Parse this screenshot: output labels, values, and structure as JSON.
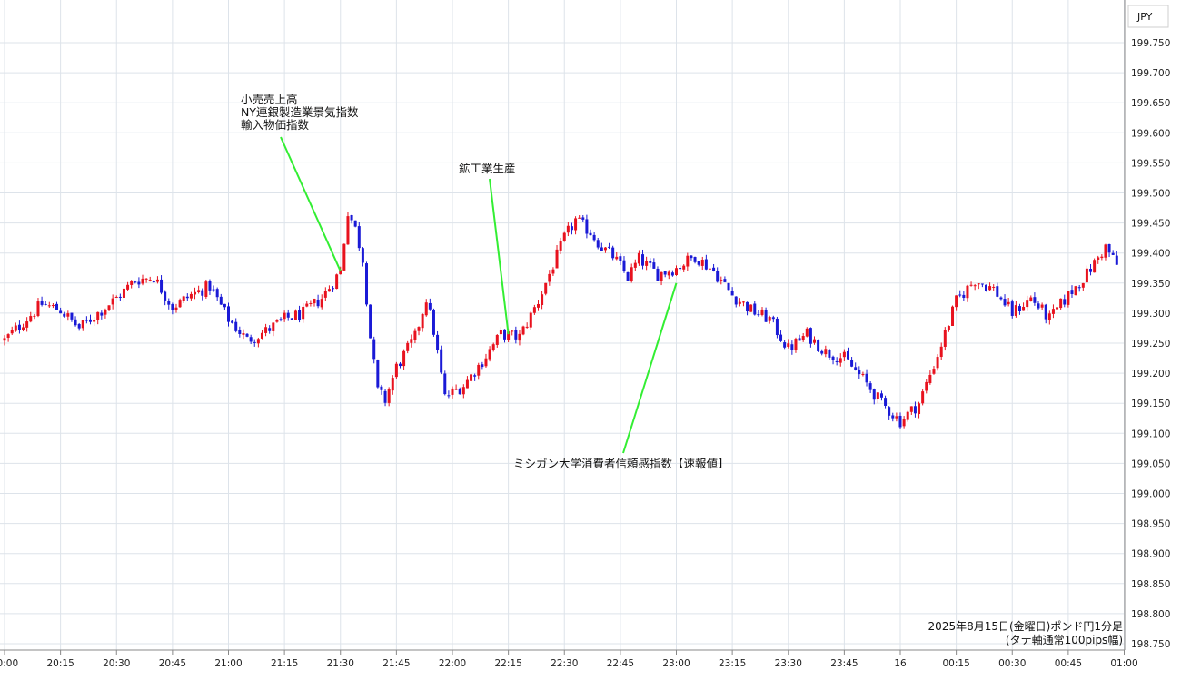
{
  "currency_label": "JPY",
  "caption": [
    "2025年8月15日(金曜日)ポンド円1分足",
    "(タテ軸通常100pips幅)"
  ],
  "colors": {
    "up": "#e8121e",
    "down": "#1a1ad6",
    "grid": "#dde3ea",
    "axis_line": "#888888",
    "annotation_line": "#33ee33"
  },
  "chart_data": {
    "type": "candlestick",
    "title": "2025年8月15日(金曜日)ポンド円1分足",
    "subtitle": "(タテ軸通常100pips幅)",
    "yaxis": {
      "label": "JPY",
      "range": [
        198.74,
        199.79
      ],
      "ticks": [
        "199.750",
        "199.700",
        "199.650",
        "199.600",
        "199.550",
        "199.500",
        "199.450",
        "199.400",
        "199.350",
        "199.300",
        "199.250",
        "199.200",
        "199.150",
        "199.100",
        "199.050",
        "199.000",
        "198.950",
        "198.900",
        "198.850",
        "198.800",
        "198.750"
      ],
      "grid": true
    },
    "xaxis": {
      "range": [
        "20:00",
        "01:00"
      ],
      "ticks": [
        {
          "t": "20:00",
          "label": "20:00"
        },
        {
          "t": "20:15",
          "label": "20:15"
        },
        {
          "t": "20:30",
          "label": "20:30"
        },
        {
          "t": "20:45",
          "label": "20:45"
        },
        {
          "t": "21:00",
          "label": "21:00"
        },
        {
          "t": "21:15",
          "label": "21:15"
        },
        {
          "t": "21:30",
          "label": "21:30"
        },
        {
          "t": "21:45",
          "label": "21:45"
        },
        {
          "t": "22:00",
          "label": "22:00"
        },
        {
          "t": "22:15",
          "label": "22:15"
        },
        {
          "t": "22:30",
          "label": "22:30"
        },
        {
          "t": "22:45",
          "label": "22:45"
        },
        {
          "t": "23:00",
          "label": "23:00"
        },
        {
          "t": "23:15",
          "label": "23:15"
        },
        {
          "t": "23:30",
          "label": "23:30"
        },
        {
          "t": "23:45",
          "label": "23:45"
        },
        {
          "t": "24:00",
          "label": "16"
        },
        {
          "t": "24:15",
          "label": "00:15"
        },
        {
          "t": "24:30",
          "label": "00:30"
        },
        {
          "t": "24:45",
          "label": "00:45"
        },
        {
          "t": "25:00",
          "label": "01:00"
        }
      ],
      "grid": true
    },
    "series_close_anchors": [
      [
        "20:00",
        199.255
      ],
      [
        "20:05",
        199.285
      ],
      [
        "20:10",
        199.315
      ],
      [
        "20:15",
        199.305
      ],
      [
        "20:20",
        199.275
      ],
      [
        "20:25",
        199.3
      ],
      [
        "20:30",
        199.325
      ],
      [
        "20:35",
        199.355
      ],
      [
        "20:40",
        199.36
      ],
      [
        "20:45",
        199.31
      ],
      [
        "20:50",
        199.33
      ],
      [
        "20:55",
        199.345
      ],
      [
        "21:00",
        199.29
      ],
      [
        "21:05",
        199.255
      ],
      [
        "21:10",
        199.27
      ],
      [
        "21:15",
        199.29
      ],
      [
        "21:20",
        199.3
      ],
      [
        "21:25",
        199.325
      ],
      [
        "21:30",
        199.37
      ],
      [
        "21:32",
        199.47
      ],
      [
        "21:34",
        199.44
      ],
      [
        "21:36",
        199.39
      ],
      [
        "21:38",
        199.26
      ],
      [
        "21:40",
        199.17
      ],
      [
        "21:42",
        199.155
      ],
      [
        "21:45",
        199.21
      ],
      [
        "21:50",
        199.26
      ],
      [
        "21:53",
        199.325
      ],
      [
        "21:55",
        199.27
      ],
      [
        "21:58",
        199.16
      ],
      [
        "22:03",
        199.18
      ],
      [
        "22:08",
        199.22
      ],
      [
        "22:13",
        199.265
      ],
      [
        "22:18",
        199.26
      ],
      [
        "22:23",
        199.32
      ],
      [
        "22:27",
        199.38
      ],
      [
        "22:30",
        199.425
      ],
      [
        "22:33",
        199.455
      ],
      [
        "22:37",
        199.435
      ],
      [
        "22:40",
        199.41
      ],
      [
        "22:43",
        199.395
      ],
      [
        "22:47",
        199.36
      ],
      [
        "22:50",
        199.39
      ],
      [
        "22:55",
        199.365
      ],
      [
        "23:00",
        199.375
      ],
      [
        "23:05",
        199.395
      ],
      [
        "23:10",
        199.37
      ],
      [
        "23:15",
        199.33
      ],
      [
        "23:20",
        199.305
      ],
      [
        "23:25",
        199.29
      ],
      [
        "23:30",
        199.24
      ],
      [
        "23:35",
        199.265
      ],
      [
        "23:40",
        199.235
      ],
      [
        "23:45",
        199.225
      ],
      [
        "23:50",
        199.19
      ],
      [
        "23:55",
        199.15
      ],
      [
        "24:00",
        199.12
      ],
      [
        "24:05",
        199.15
      ],
      [
        "24:10",
        199.23
      ],
      [
        "24:15",
        199.32
      ],
      [
        "24:20",
        199.355
      ],
      [
        "24:25",
        199.34
      ],
      [
        "24:30",
        199.3
      ],
      [
        "24:35",
        199.325
      ],
      [
        "24:40",
        199.29
      ],
      [
        "24:45",
        199.33
      ],
      [
        "24:50",
        199.365
      ],
      [
        "24:55",
        199.41
      ],
      [
        "24:58",
        199.38
      ]
    ],
    "annotations": [
      {
        "lines": [
          "小売売上高",
          "NY連銀製造業景気指数",
          "輸入物価指数"
        ],
        "target_time": "21:30",
        "target_value": 199.37
      },
      {
        "lines": [
          "鉱工業生産"
        ],
        "target_time": "22:15",
        "target_value": 199.265
      },
      {
        "lines": [
          "ミシガン大学消費者信頼感指数【速報値】"
        ],
        "target_time": "23:00",
        "target_value": 199.35
      }
    ]
  }
}
